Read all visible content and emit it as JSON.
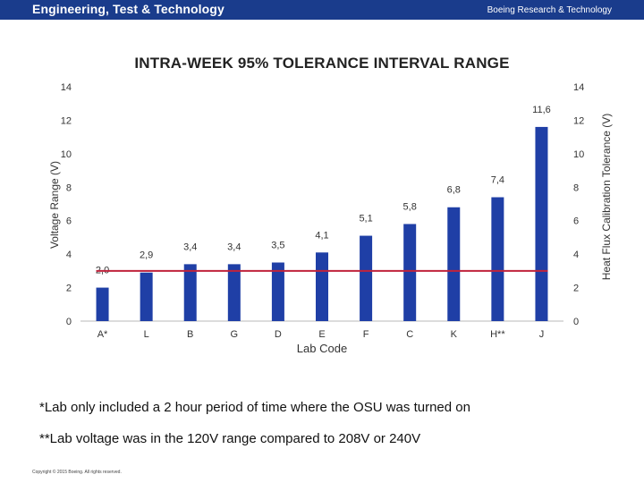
{
  "header": {
    "brand": "Engineering, Test & Technology",
    "company": "Boeing Research & Technology"
  },
  "chart_data": {
    "type": "bar",
    "title": "INTRA-WEEK 95% TOLERANCE INTERVAL RANGE",
    "xlabel": "Lab Code",
    "ylabel": "Voltage Range (V)",
    "y2label": "Heat Flux Calibration Tolerance (V)",
    "ylim": [
      0,
      14
    ],
    "y2lim": [
      0,
      14
    ],
    "yticks": [
      0,
      2,
      4,
      6,
      8,
      10,
      12,
      14
    ],
    "grid": false,
    "categories": [
      "A*",
      "L",
      "B",
      "G",
      "D",
      "E",
      "F",
      "C",
      "K",
      "H**",
      "J"
    ],
    "series": [
      {
        "values": [
          2.0,
          2.9,
          3.4,
          3.4,
          3.5,
          4.1,
          5.1,
          5.8,
          6.8,
          7.4,
          11.6
        ],
        "labels": [
          "2,0",
          "2,9",
          "3,4",
          "3,4",
          "3,5",
          "4,1",
          "5,1",
          "5,8",
          "6,8",
          "7,4",
          "11,6"
        ],
        "color": "#1f3fa6"
      }
    ],
    "reference_line": {
      "value": 3.0,
      "color": "#c0233c"
    }
  },
  "notes": {
    "note1": "*Lab only included a 2 hour period of time where the OSU was turned on",
    "note2": "**Lab voltage was in the 120V range compared to 208V or 240V"
  },
  "footer": {
    "copyright": "Copyright © 2015 Boeing. All rights reserved."
  }
}
